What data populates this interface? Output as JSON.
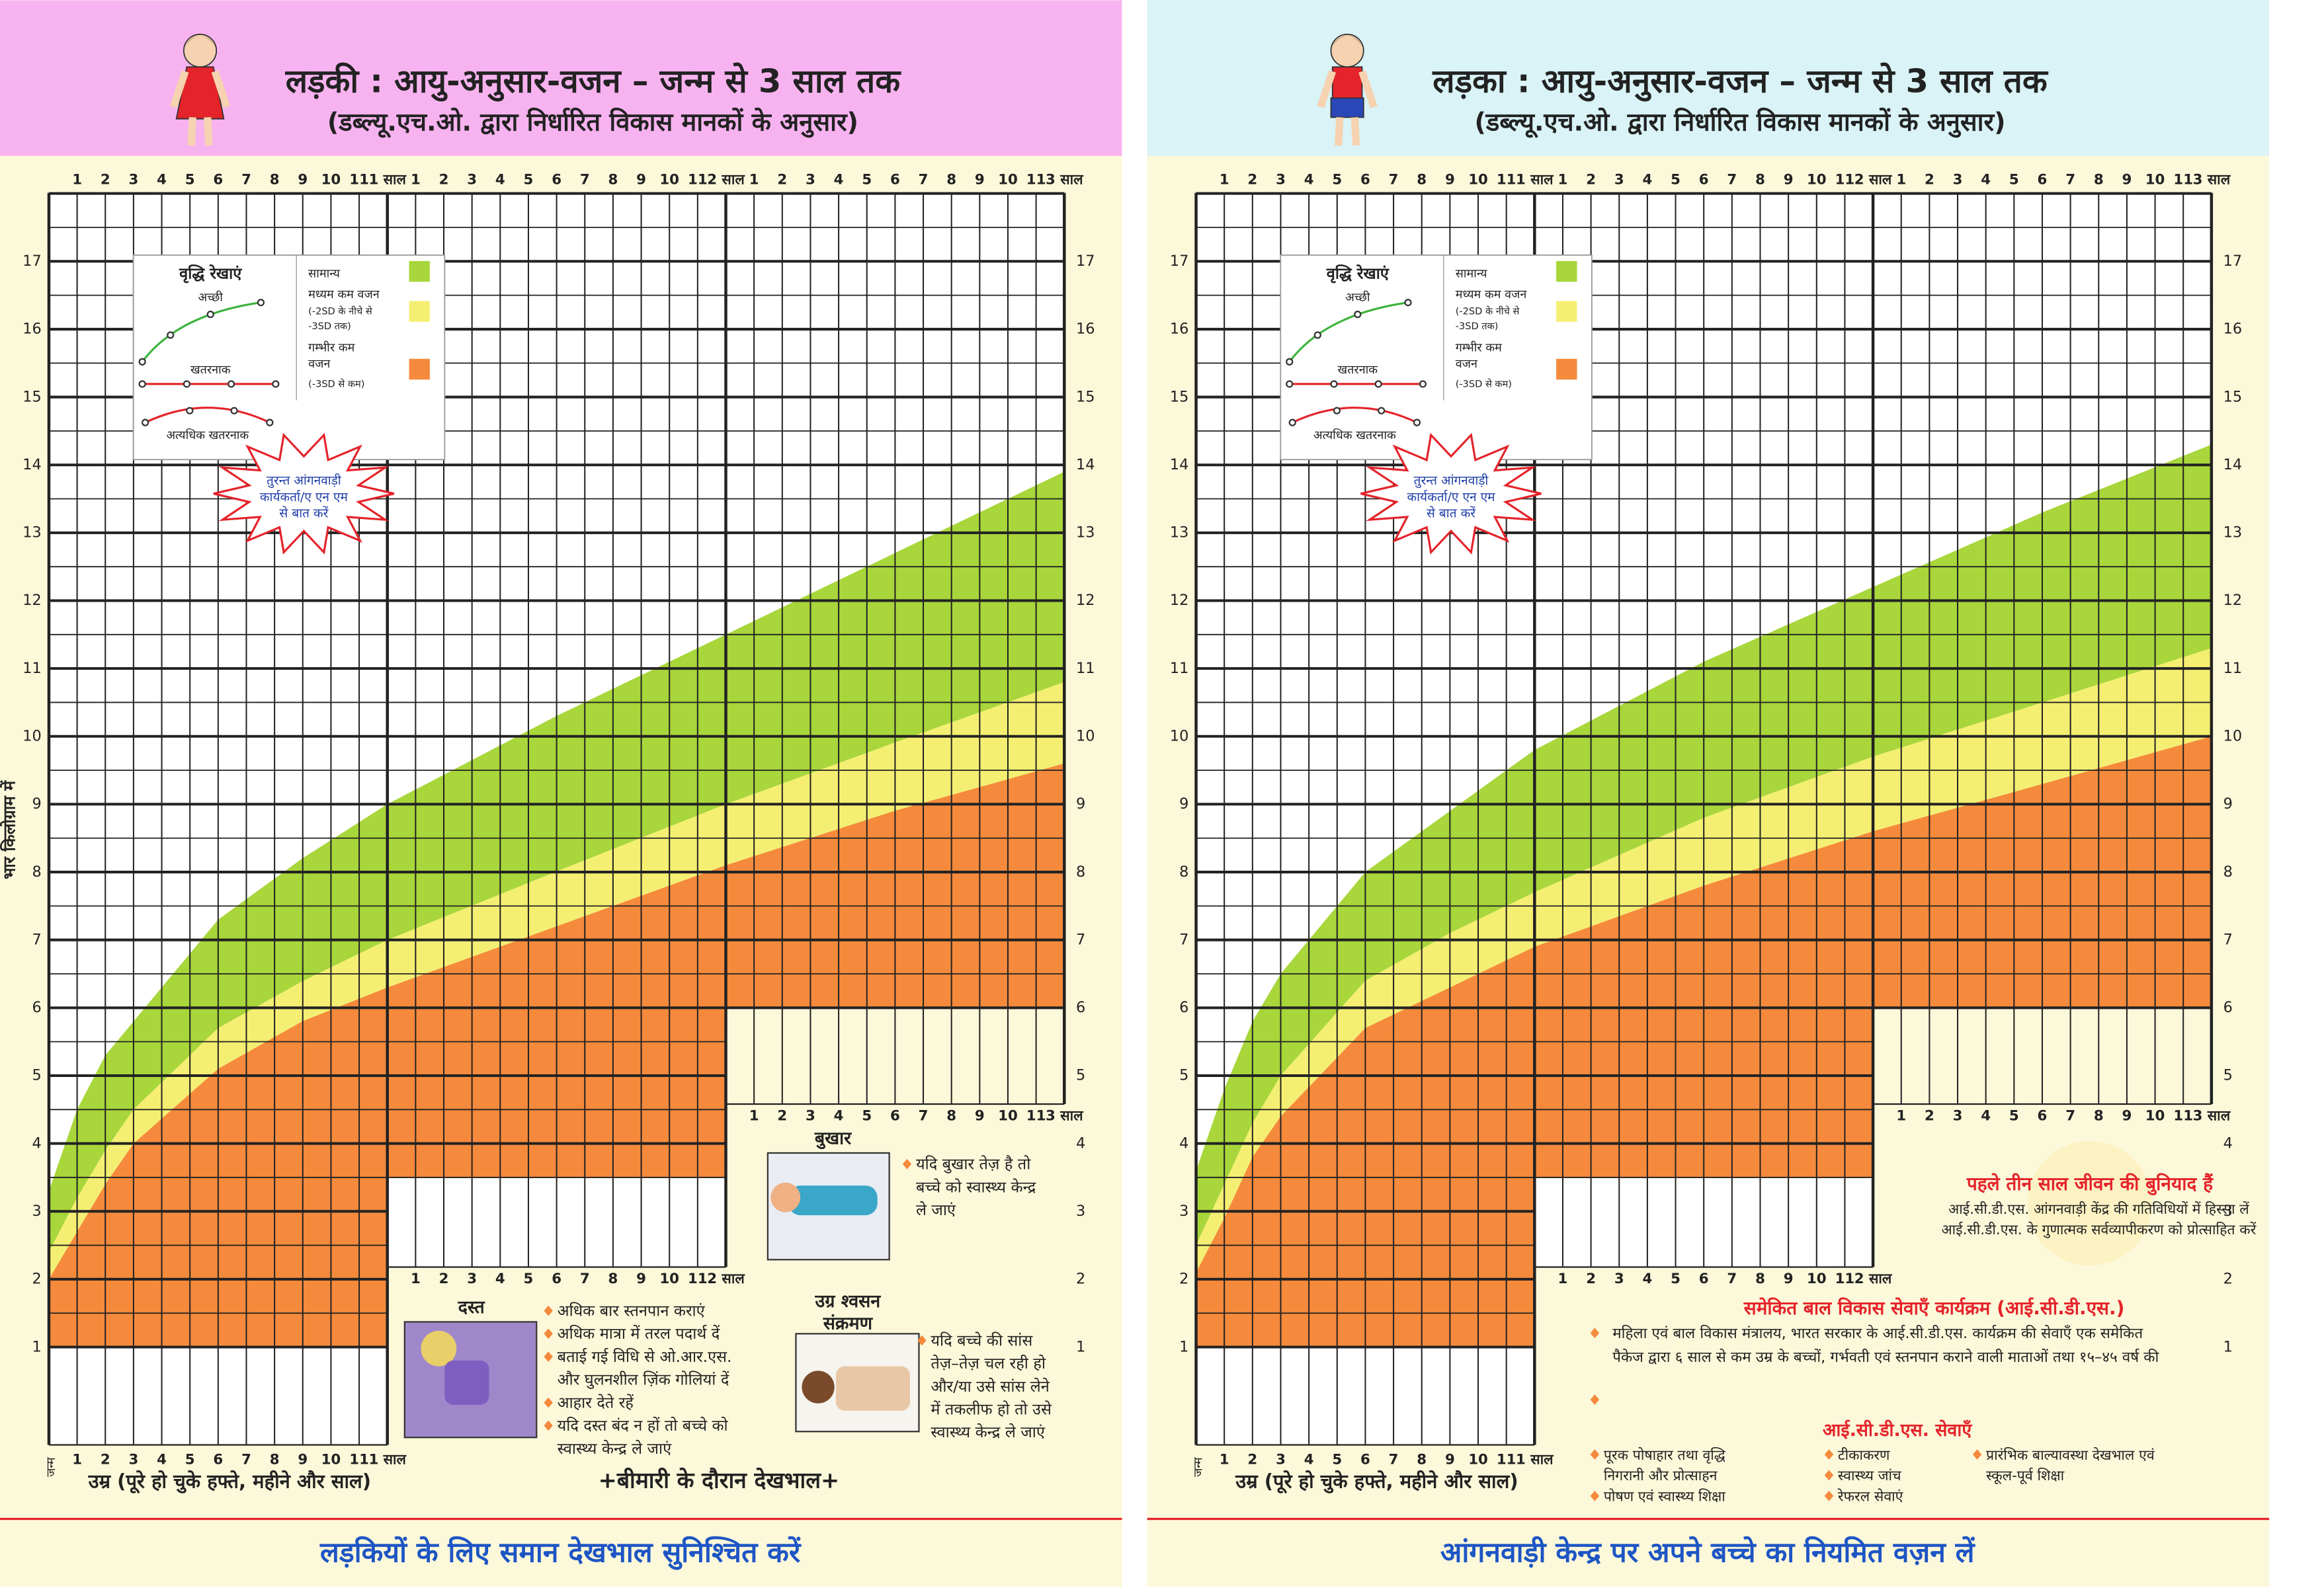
{
  "girl_panel": {
    "title": "लड़की : आयु-अनुसार-वजन – जन्म से 3 साल तक",
    "subtitle": "(डब्ल्यू.एच.ओ. द्वारा निर्धारित विकास मानकों के अनुसार)",
    "age_labels_top": [
      "1",
      "2",
      "3",
      "4",
      "5",
      "6",
      "7",
      "8",
      "9",
      "10",
      "11",
      "1 साल",
      "1",
      "2",
      "3",
      "4",
      "5",
      "6",
      "7",
      "8",
      "9",
      "10",
      "11",
      "2 साल",
      "1",
      "2",
      "3",
      "4",
      "5",
      "6",
      "7",
      "8",
      "9",
      "10",
      "11",
      "3 साल"
    ],
    "weight_labels": [
      1,
      2,
      3,
      4,
      5,
      6,
      7,
      8,
      9,
      10,
      11,
      12,
      13,
      14,
      15,
      16,
      17
    ],
    "y_axis_label": "भार किलोग्राम में",
    "legend": {
      "title": "वृद्धि रेखाएं",
      "good": "अच्छी",
      "danger": "खतरनाक",
      "severe_danger": "अत्यधिक खतरनाक",
      "normal": "सामान्य",
      "moderate": "मध्यम कम वजन",
      "moderate_note": [
        "(-2SD के नीचे से",
        "-3SD तक)"
      ],
      "severe": [
        "गम्भीर कम",
        "वजन"
      ],
      "severe_note": "(-3SD से कम)"
    },
    "alert": [
      "तुरन्त आंगनवाड़ी",
      "कार्यकर्ता/ए एन एम",
      "से बात करें"
    ],
    "row1_labels": [
      "1",
      "2",
      "3",
      "4",
      "5",
      "6",
      "7",
      "8",
      "9",
      "10",
      "11",
      "1 साल"
    ],
    "row2_labels": [
      "1",
      "2",
      "3",
      "4",
      "5",
      "6",
      "7",
      "8",
      "9",
      "10",
      "11",
      "2 साल"
    ],
    "row3_labels": [
      "1",
      "2",
      "3",
      "4",
      "5",
      "6",
      "7",
      "8",
      "9",
      "10",
      "11",
      "3 साल"
    ],
    "birth_label": "जन्म",
    "x_axis_label": "उम्र (पूरे हो चुके हफ्ते, महीने और साल)",
    "fever": {
      "heading": "बुखार",
      "lines": [
        "यदि बुखार तेज़ है तो",
        "बच्चे को स्वास्थ्य केन्द्र",
        "ले जाएं"
      ]
    },
    "diarrhoea": {
      "heading": "दस्त",
      "lines": [
        "अधिक बार स्तनपान कराएं",
        "अधिक मात्रा में तरल पदार्थ दें",
        "बताई गई विधि से ओ.आर.एस.",
        "और घुलनशील ज़िंक गोलियां दें",
        "आहार देते रहें",
        "यदि दस्त बंद न हों तो बच्चे को",
        "स्वास्थ्य केन्द्र ले जाएं"
      ]
    },
    "respiratory": {
      "heading": [
        "उग्र श्वसन",
        "संक्रमण"
      ],
      "lines": [
        "यदि बच्चे की सांस",
        "तेज़–तेज़ चल रही हो",
        "और/या उसे सांस लेने",
        "में तकलीफ हो तो उसे",
        "स्वास्थ्य केन्द्र ले जाएं"
      ]
    },
    "illness_care": "+बीमारी के दौरान देखभाल+",
    "footer": "लड़कियों के लिए समान देखभाल सुनिश्चित करें"
  },
  "boy_panel": {
    "title": "लड़का : आयु-अनुसार-वजन – जन्म से 3 साल तक",
    "subtitle": "(डब्ल्यू.एच.ओ. द्वारा निर्धारित विकास मानकों के अनुसार)",
    "age_labels_top": [
      "1",
      "2",
      "3",
      "4",
      "5",
      "6",
      "7",
      "8",
      "9",
      "10",
      "11",
      "1 साल",
      "1",
      "2",
      "3",
      "4",
      "5",
      "6",
      "7",
      "8",
      "9",
      "10",
      "11",
      "2 साल",
      "1",
      "2",
      "3",
      "4",
      "5",
      "6",
      "7",
      "8",
      "9",
      "10",
      "11",
      "3 साल"
    ],
    "weight_labels": [
      1,
      2,
      3,
      4,
      5,
      6,
      7,
      8,
      9,
      10,
      11,
      12,
      13,
      14,
      15,
      16,
      17
    ],
    "legend": {
      "title": "वृद्धि रेखाएं",
      "good": "अच्छी",
      "danger": "खतरनाक",
      "severe_danger": "अत्यधिक खतरनाक",
      "normal": "सामान्य",
      "moderate": "मध्यम कम वजन",
      "moderate_note": [
        "(-2SD के नीचे से",
        "-3SD तक)"
      ],
      "severe": [
        "गम्भीर कम",
        "वजन"
      ],
      "severe_note": "(-3SD से कम)"
    },
    "alert": [
      "तुरन्त आंगनवाड़ी",
      "कार्यकर्ता/ए एन एम",
      "से बात करें"
    ],
    "row1_labels": [
      "1",
      "2",
      "3",
      "4",
      "5",
      "6",
      "7",
      "8",
      "9",
      "10",
      "11",
      "1 साल"
    ],
    "row2_labels": [
      "1",
      "2",
      "3",
      "4",
      "5",
      "6",
      "7",
      "8",
      "9",
      "10",
      "11",
      "2 साल"
    ],
    "row3_labels": [
      "1",
      "2",
      "3",
      "4",
      "5",
      "6",
      "7",
      "8",
      "9",
      "10",
      "11",
      "3 साल"
    ],
    "birth_label": "जन्म",
    "x_axis_label": "उम्र (पूरे हो चुके हफ्ते, महीने और साल)",
    "foundation": {
      "heading": "पहले तीन साल जीवन की बुनियाद हैं",
      "lines": [
        "आई.सी.डी.एस. आंगनवाड़ी केंद्र की गतिविधियों में हिस्सा लें",
        "आई.सी.डी.एस. के गुणात्मक सर्वव्यापीकरण को प्रोत्साहित करें"
      ]
    },
    "icds": {
      "heading": "समेकित बाल विकास सेवाएँ कार्यक्रम (आई.सी.डी.एस.)",
      "lines": [
        "महिला एवं बाल विकास मंत्रालय, भारत सरकार के आई.सी.डी.एस. कार्यक्रम की सेवाएँ एक समेकित",
        "पैकेज द्वारा ६ साल से कम उम्र के बच्चों, गर्भवती एवं स्तनपान कराने वाली माताओं तथा १५–४५ वर्ष की"
      ]
    },
    "services_heading": "आई.सी.डी.एस. सेवाएँ",
    "services": [
      [
        "पूरक पोषाहार तथा वृद्धि",
        "निगरानी और प्रोत्साहन",
        "पोषण एवं स्वास्थ्य शिक्षा"
      ],
      [
        "टीकाकरण",
        "स्वास्थ्य जांच",
        "रेफरल सेवाएं"
      ],
      [
        "प्रारंभिक बाल्यावस्था देखभाल एवं",
        "स्कूल-पूर्व शिक्षा"
      ]
    ],
    "footer": "आंगनवाड़ी केन्द्र पर अपने बच्चे का नियमित वज़न लें"
  }
}
